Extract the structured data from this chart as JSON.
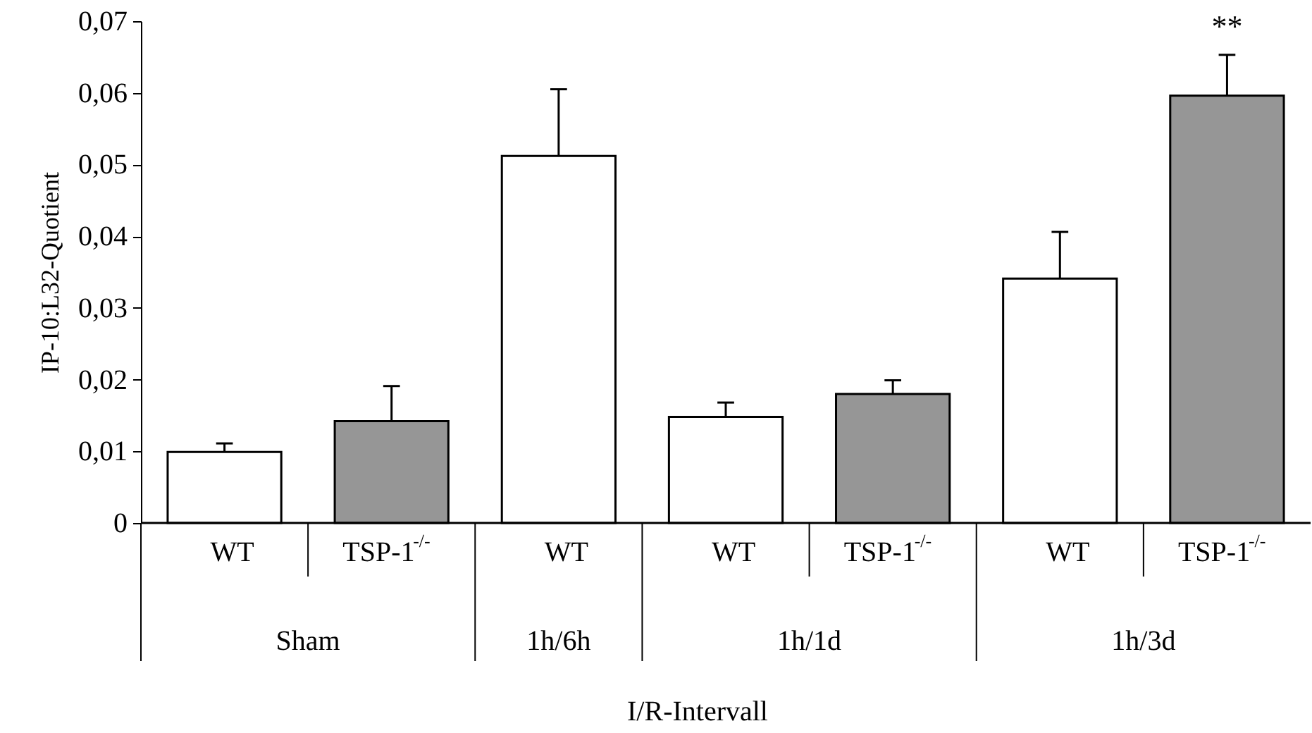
{
  "chart_data": {
    "type": "bar",
    "xlabel": "I/R-Intervall",
    "ylabel": "IP-10:L32-Quotient",
    "categories": [
      "WT",
      "TSP-1$^{-/-}$",
      "WT",
      "WT",
      "TSP-1$^{-/-}$",
      "WT",
      "TSP-1$^{-/-}$"
    ],
    "values": [
      0.0099,
      0.0142,
      0.0512,
      0.0148,
      0.018,
      0.0341,
      0.0596
    ],
    "colors": [
      "#ffffff",
      "#969696",
      "#ffffff",
      "#ffffff",
      "#969696",
      "#ffffff",
      "#969696"
    ],
    "errors": [
      [
        0.0099,
        0.0111
      ],
      [
        0.0142,
        0.0191
      ],
      [
        0.0512,
        0.0605
      ],
      [
        0.0148,
        0.0168
      ],
      [
        0.018,
        0.0199
      ],
      [
        0.0341,
        0.0406
      ],
      [
        0.0596,
        0.0653
      ]
    ],
    "value_labels": [
      null,
      null,
      null,
      null,
      null,
      null,
      "**"
    ],
    "annotations": [
      "Sham",
      "1h/6h",
      "1h/1d",
      "1h/3d"
    ],
    "ylim": [
      0,
      0.07
    ],
    "yticks": [
      0,
      {
        "value": 0.01,
        "label": "0,01"
      },
      {
        "value": 0.02,
        "label": "0,02"
      },
      {
        "value": 0.03,
        "label": "0,03"
      },
      {
        "value": 0.04,
        "label": "0,04"
      },
      {
        "value": 0.05,
        "label": "0,05"
      },
      {
        "value": 0.06,
        "label": "0,06"
      },
      {
        "value": 0.07,
        "label": "0,07"
      }
    ],
    "grid": false
  }
}
